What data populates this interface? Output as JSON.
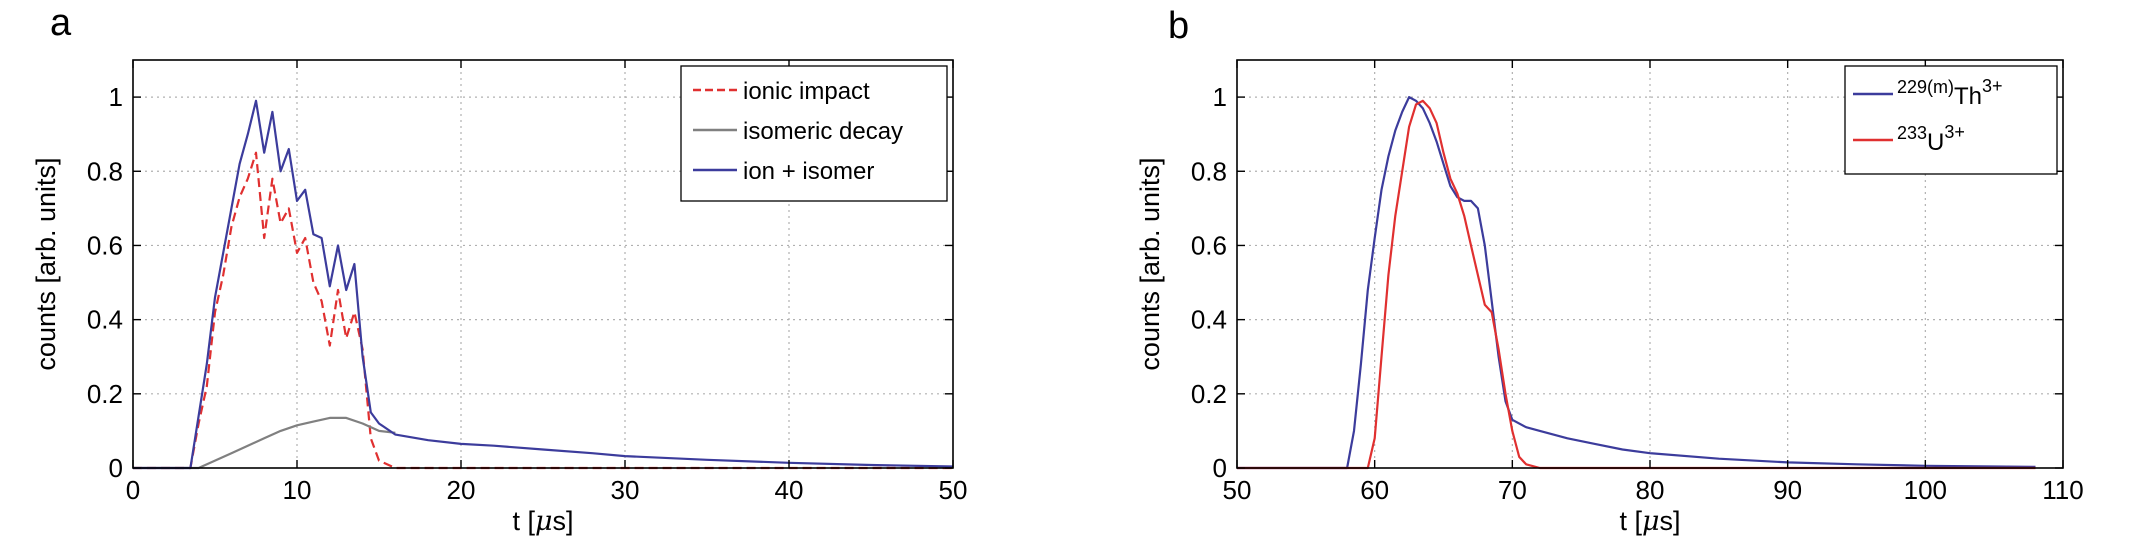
{
  "chart_data": [
    {
      "panel_label": "a",
      "type": "line",
      "xlabel_parts": [
        "t [",
        "μ",
        "s]"
      ],
      "ylabel": "counts [arb. units]",
      "xlim": [
        0,
        50
      ],
      "ylim": [
        0,
        1.1
      ],
      "xticks": [
        0,
        10,
        20,
        30,
        40,
        50
      ],
      "xtick_labels": [
        "0",
        "10",
        "20",
        "30",
        "40",
        "50"
      ],
      "yticks": [
        0,
        0.2,
        0.4,
        0.6,
        0.8,
        1
      ],
      "ytick_labels": [
        "0",
        "0.2",
        "0.4",
        "0.6",
        "0.8",
        "1"
      ],
      "legend_position": "top-right",
      "series": [
        {
          "name": "ionic impact",
          "color": "#e03030",
          "dash": "dashed",
          "x": [
            0,
            3.5,
            4,
            4.5,
            5,
            5.5,
            6,
            6.5,
            7,
            7.5,
            8,
            8.5,
            9,
            9.5,
            10,
            10.5,
            11,
            11.5,
            12,
            12.5,
            13,
            13.5,
            14,
            14.5,
            15,
            16,
            20,
            30,
            40,
            50
          ],
          "y": [
            0,
            0,
            0.12,
            0.22,
            0.42,
            0.52,
            0.65,
            0.73,
            0.78,
            0.85,
            0.62,
            0.78,
            0.66,
            0.7,
            0.58,
            0.62,
            0.5,
            0.45,
            0.33,
            0.48,
            0.35,
            0.42,
            0.32,
            0.08,
            0.02,
            0,
            0,
            0,
            0,
            0
          ]
        },
        {
          "name": "isomeric decay",
          "color": "#808080",
          "dash": "solid",
          "x": [
            0,
            4,
            5,
            6,
            7,
            8,
            9,
            10,
            11,
            12,
            13,
            14,
            15,
            16
          ],
          "y": [
            0,
            0,
            0.02,
            0.04,
            0.06,
            0.08,
            0.1,
            0.115,
            0.125,
            0.135,
            0.135,
            0.12,
            0.1,
            0.095
          ]
        },
        {
          "name": "ion + isomer",
          "color": "#3c3c9c",
          "dash": "solid",
          "x": [
            0,
            3.5,
            4,
            4.5,
            5,
            5.5,
            6,
            6.5,
            7,
            7.5,
            8,
            8.5,
            9,
            9.5,
            10,
            10.5,
            11,
            11.5,
            12,
            12.5,
            13,
            13.5,
            14,
            14.5,
            15,
            16,
            18,
            20,
            22,
            25,
            28,
            30,
            35,
            40,
            45,
            50
          ],
          "y": [
            0,
            0,
            0.14,
            0.28,
            0.46,
            0.58,
            0.7,
            0.82,
            0.9,
            0.99,
            0.85,
            0.96,
            0.8,
            0.86,
            0.72,
            0.75,
            0.63,
            0.62,
            0.49,
            0.6,
            0.48,
            0.55,
            0.3,
            0.15,
            0.12,
            0.09,
            0.075,
            0.065,
            0.06,
            0.05,
            0.04,
            0.032,
            0.022,
            0.014,
            0.008,
            0.004
          ]
        }
      ]
    },
    {
      "panel_label": "b",
      "type": "line",
      "xlabel_parts": [
        "t [",
        "μ",
        "s]"
      ],
      "ylabel": "counts [arb. units]",
      "xlim": [
        50,
        110
      ],
      "ylim": [
        0,
        1.1
      ],
      "xticks": [
        50,
        60,
        70,
        80,
        90,
        100,
        110
      ],
      "xtick_labels": [
        "50",
        "60",
        "70",
        "80",
        "90",
        "100",
        "110"
      ],
      "yticks": [
        0,
        0.2,
        0.4,
        0.6,
        0.8,
        1
      ],
      "ytick_labels": [
        "0",
        "0.2",
        "0.4",
        "0.6",
        "0.8",
        "1"
      ],
      "legend_position": "top-right",
      "series": [
        {
          "name": "229(m)Th3+",
          "label_parts": {
            "sup": "229(m)",
            "base": "Th",
            "charge": "3+"
          },
          "color": "#3c3c9c",
          "dash": "solid",
          "x": [
            50,
            58,
            58.5,
            59,
            59.5,
            60,
            60.5,
            61,
            61.5,
            62,
            62.5,
            63,
            63.5,
            64,
            64.5,
            65,
            65.5,
            66,
            66.5,
            67,
            67.5,
            68,
            68.5,
            69,
            69.5,
            70,
            71,
            72,
            74,
            76,
            78,
            80,
            85,
            90,
            95,
            100,
            105,
            108
          ],
          "y": [
            0,
            0,
            0.1,
            0.28,
            0.48,
            0.62,
            0.75,
            0.84,
            0.91,
            0.96,
            1.0,
            0.99,
            0.97,
            0.93,
            0.88,
            0.82,
            0.76,
            0.73,
            0.72,
            0.72,
            0.7,
            0.6,
            0.45,
            0.3,
            0.18,
            0.13,
            0.11,
            0.1,
            0.08,
            0.065,
            0.05,
            0.04,
            0.025,
            0.015,
            0.01,
            0.006,
            0.004,
            0.003
          ]
        },
        {
          "name": "233U3+",
          "label_parts": {
            "sup": "233",
            "base": "U",
            "charge": "3+"
          },
          "color": "#e03030",
          "dash": "solid",
          "x": [
            50,
            59.5,
            60,
            60.5,
            61,
            61.5,
            62,
            62.5,
            63,
            63.5,
            64,
            64.5,
            65,
            65.5,
            66,
            66.5,
            67,
            67.5,
            68,
            68.5,
            69,
            69.5,
            70,
            70.5,
            71,
            72,
            80,
            90,
            100,
            108
          ],
          "y": [
            0,
            0,
            0.08,
            0.3,
            0.52,
            0.68,
            0.8,
            0.92,
            0.98,
            0.99,
            0.97,
            0.93,
            0.85,
            0.78,
            0.74,
            0.68,
            0.6,
            0.52,
            0.44,
            0.42,
            0.32,
            0.2,
            0.1,
            0.03,
            0.01,
            0,
            0,
            0,
            0,
            0
          ]
        }
      ]
    }
  ]
}
